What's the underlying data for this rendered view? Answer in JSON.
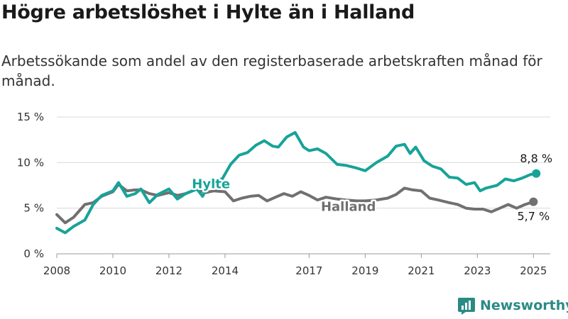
{
  "title": "Högre arbetslöshet i Hylte än i Halland",
  "subtitle": "Arbetssökande som andel av den registerbaserade arbetskraften månad för månad.",
  "brand": {
    "name": "Newsworthy",
    "icon": "bar-chart-logo-icon"
  },
  "chart_data": {
    "type": "line",
    "title": "Högre arbetslöshet i Hylte än i Halland",
    "ylim": [
      0,
      15
    ],
    "yticks": [
      0,
      5,
      10,
      15
    ],
    "ytick_labels": [
      "0 %",
      "5 %",
      "10 %",
      "15 %"
    ],
    "xlim": [
      2008,
      2025.6
    ],
    "xticks": [
      2008,
      2010,
      2012,
      2014,
      2017,
      2019,
      2021,
      2023,
      2025
    ],
    "xtick_labels": [
      "2008",
      "2010",
      "2012",
      "2014",
      "2017",
      "2019",
      "2021",
      "2023",
      "2025"
    ],
    "grid": "horizontal",
    "series": [
      {
        "name": "Hylte",
        "color": "#17a398",
        "end_label": "8,8 %",
        "x": [
          2008.0,
          2008.3,
          2008.6,
          2009.0,
          2009.3,
          2009.6,
          2010.0,
          2010.2,
          2010.5,
          2010.8,
          2011.0,
          2011.3,
          2011.6,
          2012.0,
          2012.3,
          2012.6,
          2013.0,
          2013.2,
          2013.5,
          2013.9,
          2014.2,
          2014.5,
          2014.8,
          2015.1,
          2015.4,
          2015.7,
          2015.9,
          2016.2,
          2016.5,
          2016.8,
          2017.0,
          2017.3,
          2017.6,
          2018.0,
          2018.3,
          2018.7,
          2019.0,
          2019.4,
          2019.8,
          2020.1,
          2020.4,
          2020.6,
          2020.8,
          2021.1,
          2021.4,
          2021.7,
          2022.0,
          2022.3,
          2022.6,
          2022.9,
          2023.1,
          2023.3,
          2023.7,
          2024.0,
          2024.3,
          2024.6,
          2024.9,
          2025.1
        ],
        "values": [
          2.8,
          2.3,
          3.0,
          3.7,
          5.4,
          6.4,
          6.9,
          7.8,
          6.3,
          6.6,
          7.1,
          5.6,
          6.5,
          7.1,
          6.0,
          6.6,
          7.1,
          6.3,
          8.1,
          8.2,
          9.8,
          10.8,
          11.1,
          11.9,
          12.4,
          11.8,
          11.7,
          12.8,
          13.3,
          11.7,
          11.3,
          11.5,
          11.0,
          9.8,
          9.7,
          9.4,
          9.1,
          10.0,
          10.7,
          11.8,
          12.0,
          11.0,
          11.7,
          10.2,
          9.6,
          9.3,
          8.4,
          8.3,
          7.6,
          7.8,
          6.9,
          7.2,
          7.5,
          8.2,
          8.0,
          8.3,
          8.7,
          8.8
        ]
      },
      {
        "name": "Halland",
        "color": "#707070",
        "end_label": "5,7 %",
        "x": [
          2008.0,
          2008.3,
          2008.6,
          2009.0,
          2009.3,
          2009.6,
          2010.0,
          2010.2,
          2010.5,
          2010.8,
          2011.0,
          2011.3,
          2011.6,
          2012.0,
          2012.3,
          2012.6,
          2013.0,
          2013.3,
          2013.6,
          2014.0,
          2014.3,
          2014.6,
          2014.9,
          2015.2,
          2015.5,
          2015.8,
          2016.1,
          2016.4,
          2016.7,
          2017.0,
          2017.3,
          2017.6,
          2018.0,
          2018.3,
          2018.7,
          2019.0,
          2019.4,
          2019.8,
          2020.1,
          2020.4,
          2020.7,
          2021.0,
          2021.3,
          2021.6,
          2022.0,
          2022.3,
          2022.6,
          2022.9,
          2023.2,
          2023.5,
          2023.8,
          2024.1,
          2024.4,
          2024.7,
          2025.0
        ],
        "values": [
          4.3,
          3.4,
          4.0,
          5.4,
          5.6,
          6.3,
          6.8,
          7.6,
          6.9,
          7.0,
          7.0,
          6.6,
          6.4,
          6.7,
          6.4,
          6.6,
          7.1,
          6.7,
          6.9,
          6.8,
          5.8,
          6.1,
          6.3,
          6.4,
          5.8,
          6.2,
          6.6,
          6.3,
          6.8,
          6.4,
          5.9,
          6.2,
          6.0,
          5.9,
          5.8,
          5.8,
          5.9,
          6.1,
          6.5,
          7.2,
          7.0,
          6.9,
          6.1,
          5.9,
          5.6,
          5.4,
          5.0,
          4.9,
          4.9,
          4.6,
          5.0,
          5.4,
          5.0,
          5.4,
          5.7
        ]
      }
    ]
  }
}
